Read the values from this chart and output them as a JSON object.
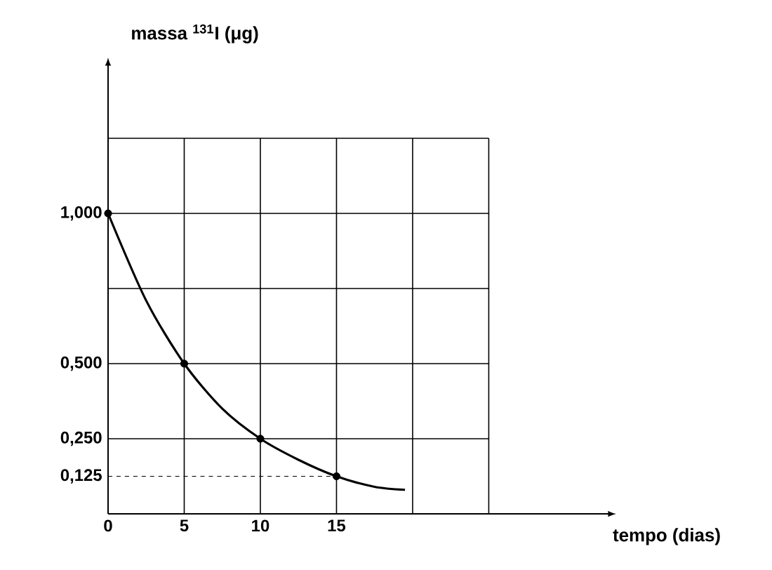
{
  "chart_data": {
    "type": "line",
    "xlabel": "tempo (dias)",
    "ylabel": "massa $^{131}$I (μg)",
    "xlim": [
      0,
      33
    ],
    "ylim": [
      0,
      1.5
    ],
    "xticks": [
      0,
      5,
      10,
      15,
      {
        "value": 20,
        "label": null
      },
      {
        "value": 25,
        "label": null
      }
    ],
    "yticks": [
      {
        "value": 0.125,
        "label": "0,125"
      },
      {
        "value": 0.25,
        "label": "0,250"
      },
      {
        "value": 0.5,
        "label": "0,500"
      },
      {
        "value": 0.75,
        "label": null
      },
      {
        "value": 1,
        "label": "1,000"
      },
      {
        "value": 1.25,
        "label": null
      }
    ],
    "grid": true,
    "series": [
      {
        "color": "#000000",
        "line_style": "solid",
        "marker": "none",
        "x": [
          0,
          2.5,
          5,
          7.5,
          10,
          12.5,
          15,
          17.5,
          19.5
        ],
        "values": [
          1.0,
          0.71,
          0.5,
          0.35,
          0.25,
          0.18,
          0.125,
          0.09,
          0.08
        ]
      },
      {
        "type": "scatter",
        "color": "#000000",
        "marker": "circle",
        "x": [
          0,
          5,
          10,
          15
        ],
        "values": [
          1,
          0.5,
          0.25,
          0.125
        ]
      }
    ],
    "ref_lines": [
      {
        "axis": "y",
        "value": 0.125,
        "line_style": "dashed"
      }
    ]
  }
}
